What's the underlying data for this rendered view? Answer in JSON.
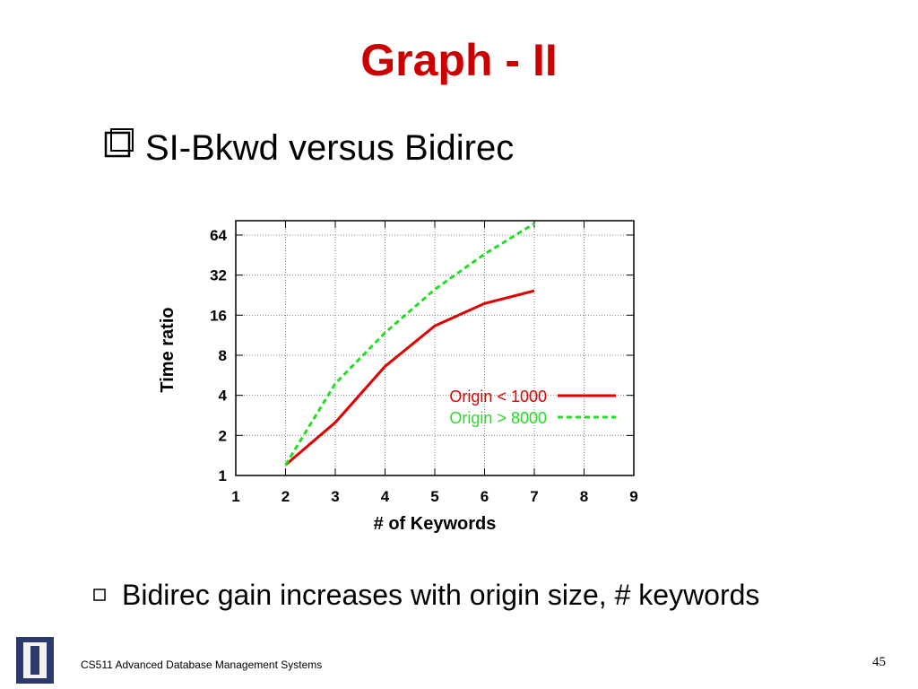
{
  "slide": {
    "title": "Graph - II",
    "bullet": "SI-Bkwd versus Bidirec",
    "note": "Bidirec gain increases with origin size, # keywords",
    "footer": "CS511 Advanced Database Management Systems",
    "page": "45"
  },
  "chart_data": {
    "type": "line",
    "xlabel": "# of Keywords",
    "ylabel": "Time ratio",
    "x": [
      2,
      3,
      4,
      5,
      6,
      7
    ],
    "series": [
      {
        "name": "Origin < 1000",
        "color": "#e00000",
        "dash": false,
        "values": [
          1.2,
          2.5,
          6.6,
          13.3,
          19.6,
          24.4
        ]
      },
      {
        "name": "Origin > 8000",
        "color": "#22dd22",
        "dash": true,
        "values": [
          1.2,
          4.9,
          11.8,
          25,
          46,
          78
        ]
      }
    ],
    "xlim": [
      1,
      9
    ],
    "xticks": [
      1,
      2,
      3,
      4,
      5,
      6,
      7,
      8,
      9
    ],
    "ylim": [
      1,
      82
    ],
    "yticks": [
      1,
      2,
      4,
      8,
      16,
      32,
      64
    ],
    "ylog": true,
    "grid": true,
    "legend": "lower-right"
  }
}
